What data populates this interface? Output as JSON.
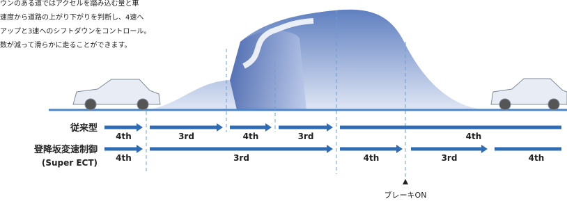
{
  "description": [
    "ウンのある道ではアクセルを踏み込む量と車",
    "速度から道路の上がり下がりを判断し、4速へ",
    "アップと3速へのシフトダウンをコントロール。",
    "数が減って滑らかに走ることができます。"
  ],
  "rows": [
    {
      "label": "従来型",
      "segments": [
        "4th",
        "3rd",
        "4th",
        "3rd",
        "4th"
      ]
    },
    {
      "label": "登降坂変速制御",
      "sublabel": "(Super ECT)",
      "segments": [
        "4th",
        "3rd",
        "4th",
        "3rd",
        "4th"
      ]
    }
  ],
  "marker": "ブレーキON"
}
